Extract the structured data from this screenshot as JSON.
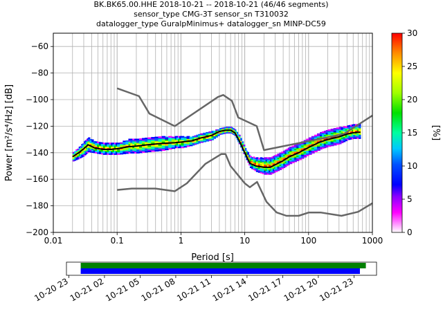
{
  "chart_data": {
    "type": "heatmap",
    "title_lines": [
      "BK.BK65.00.HHE   2018-10-21 -- 2018-10-21  (46/46 segments)",
      "sensor_type CMG-3T sensor_sn T310032",
      "datalogger_type GuralpMinimus+ datalogger_sn MINP-DC59"
    ],
    "xlabel": "Period [s]",
    "ylabel": "Power [m²/s⁴/Hz] [dB]",
    "x_scale": "log",
    "xlim": [
      0.01,
      1000
    ],
    "ylim": [
      -200,
      -50
    ],
    "x_tick_labels": [
      "0.01",
      "0.1",
      "1",
      "10",
      "100",
      "1000"
    ],
    "x_tick_values": [
      0.01,
      0.1,
      1,
      10,
      100,
      1000
    ],
    "y_tick_values": [
      -60,
      -80,
      -100,
      -120,
      -140,
      -160,
      -180,
      -200
    ],
    "y_tick_labels": [
      "−60",
      "−80",
      "−100",
      "−120",
      "−140",
      "−160",
      "−180",
      "−200"
    ],
    "grid": true,
    "colorbar": {
      "label": "[%]",
      "range": [
        0,
        30
      ],
      "tick_values": [
        0,
        5,
        10,
        15,
        20,
        25,
        30
      ],
      "tick_labels": [
        "0",
        "5",
        "10",
        "15",
        "20",
        "25",
        "30"
      ]
    },
    "series": [
      {
        "role": "high-noise-model",
        "color": "#666666",
        "x": [
          0.1,
          0.22,
          0.32,
          0.8,
          3.8,
          4.6,
          6.3,
          7.9,
          15.4,
          20,
          354.8,
          1000
        ],
        "y": [
          -91.5,
          -97.4,
          -110.5,
          -120,
          -98,
          -96.5,
          -101,
          -113.5,
          -120,
          -138,
          -126,
          -112
        ]
      },
      {
        "role": "low-noise-model",
        "color": "#666666",
        "x": [
          0.1,
          0.17,
          0.4,
          0.8,
          1.24,
          2.4,
          4.3,
          5.0,
          6.0,
          10,
          12,
          15.6,
          21.9,
          31.6,
          45,
          70,
          101,
          154,
          328,
          600,
          1000
        ],
        "y": [
          -168,
          -167,
          -167,
          -169,
          -163,
          -148.5,
          -141,
          -141,
          -150,
          -163,
          -166,
          -162,
          -177,
          -185,
          -187.5,
          -187.5,
          -185,
          -185,
          -187.5,
          -184.5,
          -178
        ]
      },
      {
        "role": "mode",
        "color": "#000000",
        "x": [
          0.02,
          0.025,
          0.03,
          0.035,
          0.045,
          0.06,
          0.08,
          0.1,
          0.15,
          0.2,
          0.3,
          0.5,
          0.8,
          1.0,
          1.5,
          2.0,
          3.0,
          4.0,
          5.0,
          6.0,
          7.0,
          8.0,
          10,
          12,
          15,
          20,
          25,
          30,
          40,
          50,
          70,
          100,
          150,
          200,
          300,
          400,
          500,
          650
        ],
        "y": [
          -143,
          -140,
          -137,
          -134,
          -136.5,
          -137.5,
          -137.5,
          -137,
          -135.5,
          -135,
          -134,
          -133,
          -132.5,
          -132,
          -131,
          -129,
          -127,
          -124,
          -123,
          -123,
          -125,
          -130,
          -140,
          -148,
          -150,
          -151,
          -151,
          -149,
          -146,
          -143,
          -140,
          -136,
          -132,
          -130,
          -128,
          -126,
          -125,
          -124.5
        ]
      }
    ],
    "density_points": [
      {
        "x": 0.02,
        "y": -143,
        "spread": 3
      },
      {
        "x": 0.025,
        "y": -140,
        "spread": 4
      },
      {
        "x": 0.03,
        "y": -137,
        "spread": 5
      },
      {
        "x": 0.035,
        "y": -134,
        "spread": 5
      },
      {
        "x": 0.045,
        "y": -136,
        "spread": 4
      },
      {
        "x": 0.06,
        "y": -137,
        "spread": 4
      },
      {
        "x": 0.08,
        "y": -137,
        "spread": 4
      },
      {
        "x": 0.1,
        "y": -137,
        "spread": 4
      },
      {
        "x": 0.15,
        "y": -135,
        "spread": 5
      },
      {
        "x": 0.2,
        "y": -135,
        "spread": 5
      },
      {
        "x": 0.3,
        "y": -134,
        "spread": 5
      },
      {
        "x": 0.5,
        "y": -133,
        "spread": 5
      },
      {
        "x": 0.8,
        "y": -132,
        "spread": 4
      },
      {
        "x": 1.0,
        "y": -132,
        "spread": 4
      },
      {
        "x": 1.5,
        "y": -131,
        "spread": 3
      },
      {
        "x": 2.0,
        "y": -129,
        "spread": 3
      },
      {
        "x": 3.0,
        "y": -127,
        "spread": 3
      },
      {
        "x": 4.0,
        "y": -124,
        "spread": 2
      },
      {
        "x": 5.0,
        "y": -123,
        "spread": 2
      },
      {
        "x": 6.0,
        "y": -123,
        "spread": 2
      },
      {
        "x": 7.0,
        "y": -125,
        "spread": 2
      },
      {
        "x": 8.0,
        "y": -130,
        "spread": 3
      },
      {
        "x": 10,
        "y": -140,
        "spread": 3
      },
      {
        "x": 12,
        "y": -147,
        "spread": 4
      },
      {
        "x": 15,
        "y": -149,
        "spread": 5
      },
      {
        "x": 20,
        "y": -150,
        "spread": 6
      },
      {
        "x": 25,
        "y": -150,
        "spread": 6
      },
      {
        "x": 30,
        "y": -148,
        "spread": 6
      },
      {
        "x": 40,
        "y": -145,
        "spread": 6
      },
      {
        "x": 50,
        "y": -142,
        "spread": 6
      },
      {
        "x": 70,
        "y": -139,
        "spread": 6
      },
      {
        "x": 100,
        "y": -135,
        "spread": 6
      },
      {
        "x": 150,
        "y": -131,
        "spread": 6
      },
      {
        "x": 200,
        "y": -129,
        "spread": 6
      },
      {
        "x": 300,
        "y": -127,
        "spread": 6
      },
      {
        "x": 400,
        "y": -125,
        "spread": 5
      },
      {
        "x": 500,
        "y": -124,
        "spread": 5
      },
      {
        "x": 650,
        "y": -124,
        "spread": 5
      }
    ],
    "timeline": {
      "tick_labels": [
        "10-20 23",
        "10-21 02",
        "10-21 05",
        "10-21 08",
        "10-21 11",
        "10-21 14",
        "10-21 17",
        "10-21 20",
        "10-21 23"
      ],
      "tick_hours": [
        -1,
        2,
        5,
        8,
        11,
        14,
        17,
        20,
        23
      ],
      "range_hours": [
        -1.2,
        24.9
      ],
      "bars": [
        {
          "name": "data-availability",
          "color": "#008000",
          "start_hours": 0,
          "end_hours": 24
        },
        {
          "name": "psd-segments",
          "color": "#0000ff",
          "start_hours": 0,
          "end_hours": 23.5
        }
      ]
    }
  }
}
